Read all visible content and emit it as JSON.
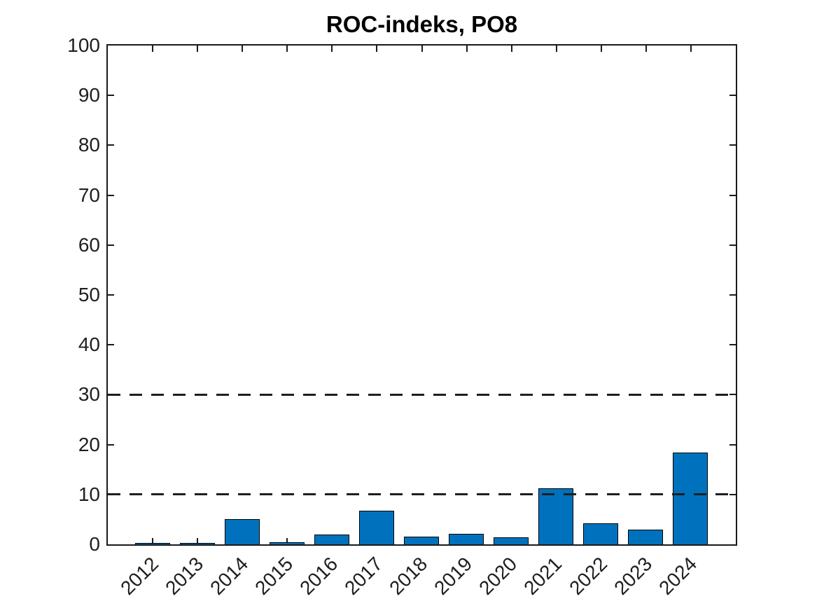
{
  "chart_data": {
    "type": "bar",
    "title": "ROC-indeks, PO8",
    "categories": [
      "2012",
      "2013",
      "2014",
      "2015",
      "2016",
      "2017",
      "2018",
      "2019",
      "2020",
      "2021",
      "2022",
      "2023",
      "2024"
    ],
    "values": [
      0.15,
      0.15,
      4.9,
      0.3,
      1.8,
      6.6,
      1.4,
      2.0,
      1.2,
      11.1,
      4.1,
      2.8,
      18.2
    ],
    "xlabel": "",
    "ylabel": "",
    "ylim": [
      0,
      100
    ],
    "yticks": [
      0,
      10,
      20,
      30,
      40,
      50,
      60,
      70,
      80,
      90,
      100
    ],
    "reference_lines": [
      {
        "y": 10,
        "style": "dashed",
        "color": "#1f1f1f"
      },
      {
        "y": 30,
        "style": "dashed",
        "color": "#1f1f1f"
      }
    ],
    "bar_color": "#0072BD",
    "bar_edge_color": "#000000",
    "axis_color": "#1a1a1a",
    "background_color": "#ffffff",
    "grid": false,
    "legend": "none",
    "x_tick_rotation_deg": 45,
    "box": true,
    "tick_direction": "in"
  }
}
